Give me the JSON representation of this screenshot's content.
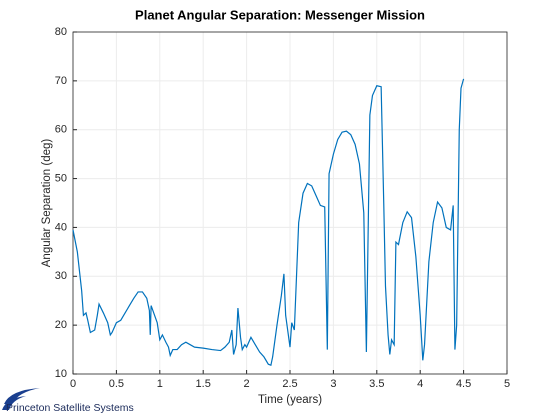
{
  "chart_data": {
    "type": "line",
    "title": "Planet Angular Separation: Messenger Mission",
    "xlabel": "Time (years)",
    "ylabel": "Angular Separation (deg)",
    "xlim": [
      0,
      5
    ],
    "xticks": [
      0,
      0.5,
      1,
      1.5,
      2,
      2.5,
      3,
      3.5,
      4,
      4.5,
      5
    ],
    "ylim": [
      10,
      80
    ],
    "yticks": [
      10,
      20,
      30,
      40,
      50,
      60,
      70,
      80
    ],
    "grid": true,
    "x": [
      0,
      0.05,
      0.1,
      0.12,
      0.15,
      0.17,
      0.2,
      0.25,
      0.28,
      0.3,
      0.35,
      0.4,
      0.43,
      0.45,
      0.5,
      0.55,
      0.6,
      0.65,
      0.7,
      0.75,
      0.8,
      0.85,
      0.88,
      0.89,
      0.9,
      0.93,
      0.97,
      1.0,
      1.03,
      1.07,
      1.1,
      1.12,
      1.15,
      1.2,
      1.25,
      1.3,
      1.35,
      1.4,
      1.5,
      1.6,
      1.7,
      1.75,
      1.8,
      1.83,
      1.85,
      1.88,
      1.9,
      1.93,
      1.95,
      1.98,
      2.0,
      2.05,
      2.1,
      2.15,
      2.2,
      2.25,
      2.28,
      2.3,
      2.35,
      2.4,
      2.43,
      2.45,
      2.5,
      2.52,
      2.55,
      2.6,
      2.65,
      2.7,
      2.75,
      2.8,
      2.85,
      2.9,
      2.93,
      2.95,
      3.0,
      3.05,
      3.1,
      3.15,
      3.2,
      3.25,
      3.3,
      3.35,
      3.38,
      3.42,
      3.45,
      3.5,
      3.55,
      3.58,
      3.6,
      3.63,
      3.65,
      3.67,
      3.7,
      3.72,
      3.75,
      3.8,
      3.85,
      3.9,
      3.95,
      4.0,
      4.03,
      4.05,
      4.1,
      4.15,
      4.2,
      4.25,
      4.3,
      4.35,
      4.38,
      4.4,
      4.42,
      4.45,
      4.47,
      4.5
    ],
    "series": [
      {
        "color": "#0072bd",
        "values": [
          39.5,
          35,
          27,
          22,
          22.5,
          21,
          18.5,
          19,
          22,
          24.3,
          22.5,
          20.5,
          18,
          18.5,
          20.5,
          21,
          22.5,
          24,
          25.5,
          26.8,
          26.8,
          25.5,
          23,
          18,
          24,
          22.5,
          20.5,
          17,
          18,
          16.5,
          15.5,
          13.8,
          15,
          15,
          16,
          16.5,
          16,
          15.5,
          15.3,
          15,
          14.8,
          15.5,
          16.5,
          19,
          14,
          16,
          23.5,
          17.5,
          15,
          16,
          15.5,
          17.5,
          16,
          14.5,
          13.5,
          12,
          11.8,
          13.5,
          20,
          26,
          30.5,
          22,
          15.5,
          20.5,
          19,
          41,
          47,
          49,
          48.5,
          46.5,
          44.5,
          44.2,
          15,
          51,
          55,
          58,
          59.5,
          59.7,
          59,
          57,
          53,
          43,
          14.5,
          63,
          67,
          69,
          68.8,
          45,
          28,
          18,
          14,
          17,
          16,
          37,
          36.5,
          41,
          43.2,
          42,
          34,
          22,
          12.8,
          16,
          33,
          41,
          45.2,
          44,
          40,
          39.5,
          44.5,
          15,
          20,
          60,
          68.5,
          70.4
        ]
      }
    ]
  },
  "logo": "Princeton Satellite Systems"
}
